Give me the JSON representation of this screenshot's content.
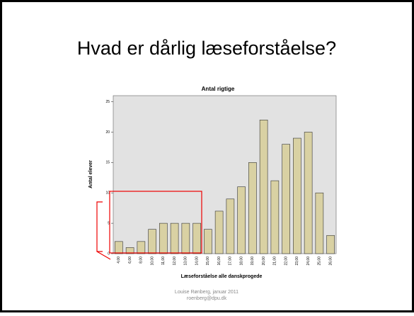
{
  "slide": {
    "title": "Hvad er dårlig læseforståelse?",
    "footer": [
      "Louise Rønberg, januar 2011",
      "roenberg@dpu.dk"
    ]
  },
  "chart_data": {
    "type": "bar",
    "title": "Antal rigtige",
    "y_label": "Antal elever",
    "x_label": "Læseforståelse alle danskprogede",
    "categories": [
      "4,00",
      "6,00",
      "8,00",
      "10,00",
      "11,00",
      "12,00",
      "13,00",
      "14,00",
      "15,00",
      "16,00",
      "17,00",
      "18,00",
      "19,00",
      "20,00",
      "21,00",
      "22,00",
      "23,00",
      "24,00",
      "25,00",
      "26,00"
    ],
    "values": [
      2,
      1,
      2,
      4,
      5,
      5,
      5,
      5,
      4,
      7,
      9,
      11,
      15,
      22,
      12,
      18,
      19,
      20,
      10,
      3
    ],
    "color": "#d9d1a3",
    "ylim": [
      0,
      26
    ],
    "yticks": [
      0,
      5,
      10,
      15,
      20,
      25
    ]
  }
}
